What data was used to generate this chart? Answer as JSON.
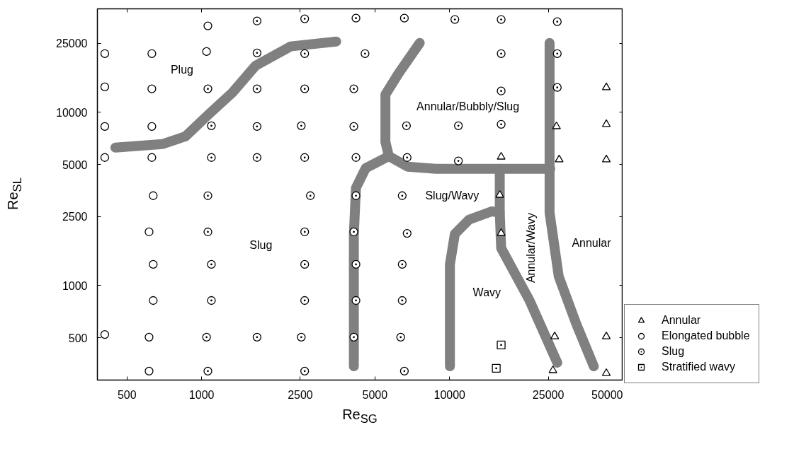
{
  "chart_data": {
    "type": "scatter",
    "xlabel": "Re$_{SG}$",
    "ylabel": "Re$_{SL}$",
    "log": "xy",
    "xlim": [
      380,
      50000
    ],
    "ylim": [
      285,
      39500
    ],
    "xticks": [
      500,
      1000,
      2500,
      5000,
      10000,
      25000,
      50000
    ],
    "yticks": [
      500,
      1000,
      2500,
      5000,
      10000,
      25000
    ],
    "grid": false,
    "legend": "bottom right",
    "series": [
      {
        "name": "Annular",
        "marker": "triangle",
        "color": "#000000",
        "x": [
          16140,
          15930,
          16140,
          26980,
          27660,
          26530,
          26100,
          42850,
          42850,
          42850,
          42850,
          42850
        ],
        "values": [
          5530,
          3330,
          2005,
          8280,
          5330,
          508,
          324,
          13900,
          8520,
          5330,
          508,
          312
        ]
      },
      {
        "name": "Elongated bubble",
        "marker": "circle",
        "color": "#000000",
        "x": [
          407,
          407,
          407,
          407,
          407,
          630,
          630,
          630,
          630,
          638,
          614,
          638,
          638,
          614,
          614,
          1060,
          1047
        ],
        "values": [
          21800,
          14000,
          8280,
          5480,
          522,
          21800,
          13640,
          8280,
          5480,
          3300,
          2040,
          1325,
          820,
          504,
          321,
          31500,
          22400
        ]
      },
      {
        "name": "Slug",
        "marker": "circle_dot",
        "color": "#000000",
        "x": [
          1060,
          1095,
          1095,
          1060,
          1060,
          1095,
          1095,
          1047,
          1060,
          1673,
          1673,
          1673,
          1673,
          1673,
          1673,
          2604,
          2604,
          2604,
          2523,
          2604,
          2745,
          2604,
          2604,
          2604,
          2523,
          2604,
          4192,
          4560,
          4110,
          4110,
          4192,
          4192,
          4110,
          4192,
          4192,
          4110,
          6570,
          6700,
          6740,
          6440,
          6740,
          6440,
          6440,
          6350,
          6570,
          10500,
          10850,
          10850,
          16140,
          16140,
          16140,
          16140,
          27170,
          27170,
          27170
        ],
        "values": [
          13640,
          8360,
          5480,
          3300,
          2040,
          1325,
          820,
          504,
          321,
          33600,
          22000,
          13640,
          8280,
          5480,
          504,
          34600,
          21800,
          13640,
          8360,
          5480,
          3300,
          2040,
          1325,
          820,
          504,
          321,
          34900,
          21800,
          13640,
          8280,
          5480,
          3300,
          2040,
          1325,
          820,
          504,
          34900,
          8360,
          5480,
          3300,
          2000,
          1325,
          820,
          504,
          321,
          34300,
          8360,
          5240,
          34300,
          21800,
          13260,
          8520,
          33300,
          21800,
          13900
        ]
      },
      {
        "name": "Stratified wavy",
        "marker": "square_dot",
        "color": "#000000",
        "x": [
          16140,
          15420
        ],
        "values": [
          454,
          333
        ]
      },
      {
        "type": "line",
        "color": "#808080",
        "x": [
          449,
          694,
          861,
          1075,
          1332,
          1651,
          2286,
          3490
        ],
        "values": [
          6250,
          6550,
          7260,
          9810,
          13000,
          18560,
          23980,
          25590
        ]
      },
      {
        "type": "line",
        "color": "#808080",
        "x": [
          4111,
          4111,
          4192,
          4590,
          5690,
          6790,
          8810,
          25470
        ],
        "values": [
          342,
          1986,
          3660,
          4760,
          5580,
          4850,
          4715,
          4715
        ]
      },
      {
        "type": "line",
        "color": "#808080",
        "x": [
          5690,
          5510,
          5510,
          6230,
          7580
        ],
        "values": [
          5580,
          6740,
          12650,
          16770,
          25120
        ]
      },
      {
        "type": "line",
        "color": "#808080",
        "x": [
          25300,
          25300,
          27540,
          32400,
          38140
        ],
        "values": [
          25120,
          2633,
          1130,
          602,
          342
        ]
      },
      {
        "type": "line",
        "color": "#808080",
        "x": [
          15930,
          15930,
          16140,
          20940,
          27170
        ],
        "values": [
          4715,
          2633,
          1646,
          828,
          359
        ]
      },
      {
        "type": "line",
        "color": "#808080",
        "x": [
          15930,
          14830,
          11960,
          10500,
          10030,
          10030
        ],
        "values": [
          2633,
          2683,
          2397,
          1986,
          1326,
          342
        ]
      }
    ],
    "annotations": [
      "Plug",
      "Annular/Bubbly/Slug",
      "Slug",
      "Slug/Wavy",
      "Wavy",
      "Annular/Wavy",
      "Annular"
    ]
  }
}
